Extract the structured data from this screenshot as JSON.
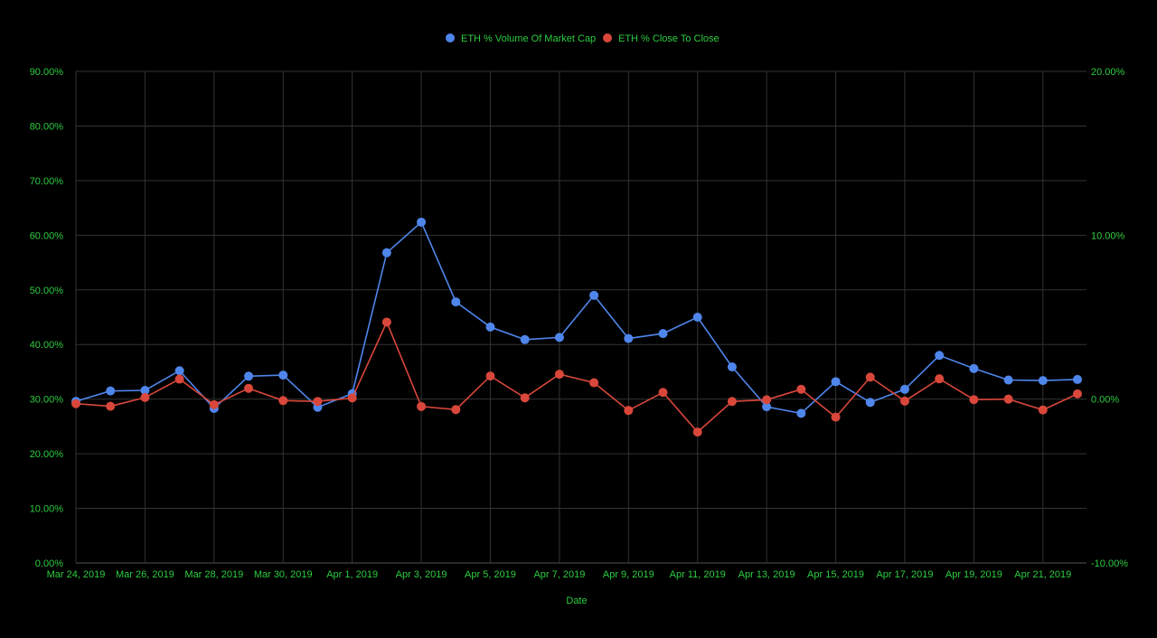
{
  "chart_data": {
    "type": "line",
    "xlabel": "Date",
    "legend_position": "top-center",
    "grid": true,
    "colors": {
      "background": "#000000",
      "text": "#2ecc40",
      "grid": "#333333"
    },
    "x_tick_labels": [
      "Mar 24, 2019",
      "Mar 26, 2019",
      "Mar 28, 2019",
      "Mar 30, 2019",
      "Apr 1, 2019",
      "Apr 3, 2019",
      "Apr 5, 2019",
      "Apr 7, 2019",
      "Apr 9, 2019",
      "Apr 11, 2019",
      "Apr 13, 2019",
      "Apr 15, 2019",
      "Apr 17, 2019",
      "Apr 19, 2019",
      "Apr 21, 2019"
    ],
    "x_dates": [
      "2019-03-24",
      "2019-03-25",
      "2019-03-26",
      "2019-03-27",
      "2019-03-28",
      "2019-03-29",
      "2019-03-30",
      "2019-03-31",
      "2019-04-01",
      "2019-04-02",
      "2019-04-03",
      "2019-04-04",
      "2019-04-05",
      "2019-04-06",
      "2019-04-07",
      "2019-04-08",
      "2019-04-09",
      "2019-04-10",
      "2019-04-11",
      "2019-04-12",
      "2019-04-13",
      "2019-04-14",
      "2019-04-15",
      "2019-04-16",
      "2019-04-17",
      "2019-04-18",
      "2019-04-19",
      "2019-04-20",
      "2019-04-21",
      "2019-04-22"
    ],
    "left_axis": {
      "range": [
        0,
        0.9
      ],
      "ticks": [
        "0.00%",
        "10.00%",
        "20.00%",
        "30.00%",
        "40.00%",
        "50.00%",
        "60.00%",
        "70.00%",
        "80.00%",
        "90.00%"
      ]
    },
    "right_axis": {
      "range": [
        -0.1,
        0.2
      ],
      "ticks": [
        "-10.00%",
        "0.00%",
        "10.00%",
        "20.00%"
      ]
    },
    "series": [
      {
        "name": "ETH % Volume Of Market Cap",
        "axis": "left",
        "color": "#4f86ec",
        "values": [
          0.296,
          0.315,
          0.316,
          0.352,
          0.283,
          0.342,
          0.344,
          0.285,
          0.31,
          0.568,
          0.624,
          0.478,
          0.432,
          0.409,
          0.413,
          0.49,
          0.411,
          0.42,
          0.45,
          0.359,
          0.286,
          0.274,
          0.332,
          0.294,
          0.318,
          0.38,
          0.356,
          0.335,
          0.334,
          0.336
        ]
      },
      {
        "name": "ETH % Close To Close",
        "axis": "right",
        "color": "#d9473b",
        "values": [
          -0.0028,
          -0.0044,
          0.001,
          0.0122,
          -0.0034,
          0.0066,
          -0.0009,
          -0.0014,
          0.0007,
          0.047,
          -0.0045,
          -0.0064,
          0.0141,
          0.0008,
          0.0152,
          0.01,
          -0.0069,
          0.0041,
          -0.0201,
          -0.0014,
          -0.0004,
          0.006,
          -0.011,
          0.0134,
          -0.0012,
          0.0124,
          -0.0003,
          0.0,
          -0.0066,
          0.0032
        ]
      }
    ]
  }
}
